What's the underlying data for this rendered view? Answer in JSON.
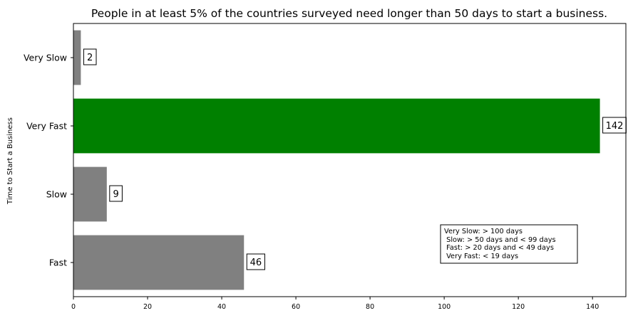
{
  "chart_data": {
    "type": "bar",
    "orientation": "horizontal",
    "title": "People in at least 5% of the countries surveyed need longer than 50 days to start a business.",
    "xlabel": "",
    "ylabel": "Time to Start a Business",
    "categories": [
      "Fast",
      "Slow",
      "Very Fast",
      "Very Slow"
    ],
    "values": [
      46,
      9,
      142,
      2
    ],
    "value_labels": [
      "46",
      "9",
      "142",
      "2"
    ],
    "bar_colors": [
      "#808080",
      "#808080",
      "#008000",
      "#808080"
    ],
    "xlim": [
      0,
      149
    ],
    "x_ticks": [
      0,
      20,
      40,
      60,
      80,
      100,
      120,
      140
    ],
    "x_tick_labels": [
      "0",
      "20",
      "40",
      "60",
      "80",
      "100",
      "120",
      "140"
    ],
    "grid": false,
    "annotation": {
      "lines": [
        "Very Slow: > 100 days",
        " Slow: > 50 days and < 99 days",
        " Fast: > 20 days and < 49 days",
        " Very Fast: < 19 days"
      ],
      "placement": "lower-right"
    }
  }
}
